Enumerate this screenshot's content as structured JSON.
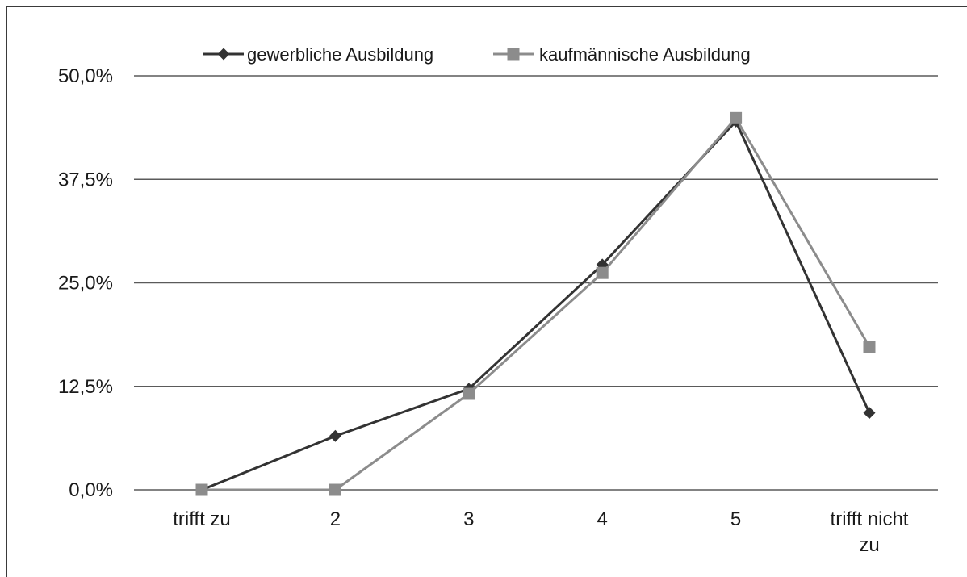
{
  "chart_data": {
    "type": "line",
    "categories": [
      "trifft zu",
      "2",
      "3",
      "4",
      "5",
      "trifft nicht zu"
    ],
    "category_lines": [
      [
        "trifft zu"
      ],
      [
        "2"
      ],
      [
        "3"
      ],
      [
        "4"
      ],
      [
        "5"
      ],
      [
        "trifft nicht",
        "zu"
      ]
    ],
    "series": [
      {
        "name": "gewerbliche Ausbildung",
        "values": [
          0.0,
          6.5,
          12.2,
          27.2,
          44.5,
          9.3
        ],
        "color": "#333333",
        "marker": "diamond"
      },
      {
        "name": "kaufmännische Ausbildung",
        "values": [
          0.0,
          0.0,
          11.6,
          26.2,
          44.9,
          17.3
        ],
        "color": "#8c8c8c",
        "marker": "square"
      }
    ],
    "y_ticks": [
      0,
      12.5,
      25,
      37.5,
      50
    ],
    "y_tick_labels": [
      "0,0%",
      "12,5%",
      "25,0%",
      "37,5%",
      "50,0%"
    ],
    "ylim": [
      0,
      50
    ],
    "grid": true,
    "legend_position": "top",
    "title": "",
    "xlabel": "",
    "ylabel": ""
  }
}
